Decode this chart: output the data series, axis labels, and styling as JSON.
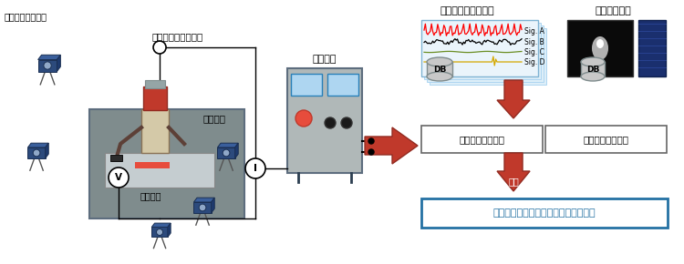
{
  "bg_color": "#ffffff",
  "left_section": {
    "label_camera": "動作計測用カメラ",
    "label_wire_speed": "溶接ワイヤ送給速度",
    "label_current": "溶接電流",
    "label_power": "溶接電源",
    "label_voltage": "溶接電圧"
  },
  "right_section": {
    "label_condition": "溶接条件・動作計測",
    "label_state": "溶接状態計測",
    "sig_a": "Sig. A",
    "sig_b": "Sig. B",
    "sig_c": "Sig. C",
    "sig_d": "Sig. D",
    "db": "DB",
    "label_expert": "熙練技能者データ",
    "label_novice": "若手技能者データ",
    "label_compare": "比較",
    "label_standard": "適正な溶接条件や動作を新たに基準化"
  },
  "arrow_color": "#c0392b",
  "box_border_color": "#2471a3",
  "box_text_color": "#2471a3",
  "camera_color_main": "#2c4a7c",
  "camera_color_top": "#3a5f9c",
  "camera_color_side": "#1e3a6e",
  "welder_body_color": "#d4c9a8",
  "welder_helmet_color": "#c0392b",
  "workbench_color": "#7f8c8d",
  "power_unit_color": "#aab7b8"
}
